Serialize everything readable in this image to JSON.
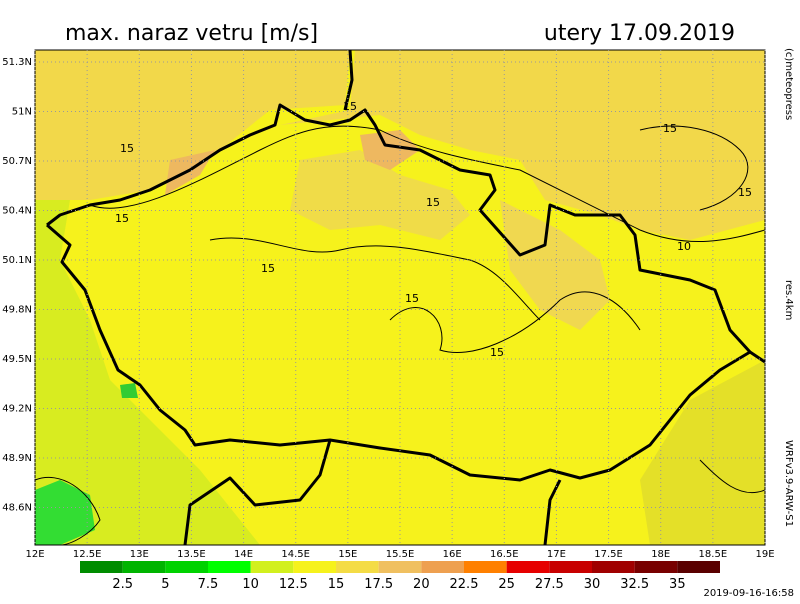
{
  "header": {
    "title": "max. naraz vetru [m/s]",
    "date": "utery 17.09.2019"
  },
  "side_texts": {
    "copyright": "(c)meteopress",
    "resolution": "res.4km",
    "model": "WRFv3.9-ARW-S1"
  },
  "timestamp": "2019-09-16-16:58",
  "latitude_labels": [
    "51.3N",
    "51N",
    "50.7N",
    "50.4N",
    "50.1N",
    "49.8N",
    "49.5N",
    "49.2N",
    "48.9N",
    "48.6N"
  ],
  "longitude_labels": [
    "12E",
    "12.5E",
    "13E",
    "13.5E",
    "14E",
    "14.5E",
    "15E",
    "15.5E",
    "16E",
    "16.5E",
    "17E",
    "17.5E",
    "18E",
    "18.5E",
    "19E"
  ],
  "legend": {
    "labels": [
      "2.5",
      "5",
      "7.5",
      "10",
      "12.5",
      "15",
      "17.5",
      "20",
      "22.5",
      "25",
      "27.5",
      "30",
      "32.5",
      "35"
    ]
  },
  "contour_labels": [
    "15",
    "15",
    "15",
    "15",
    "15",
    "15",
    "15",
    "15",
    "15",
    "10"
  ]
}
